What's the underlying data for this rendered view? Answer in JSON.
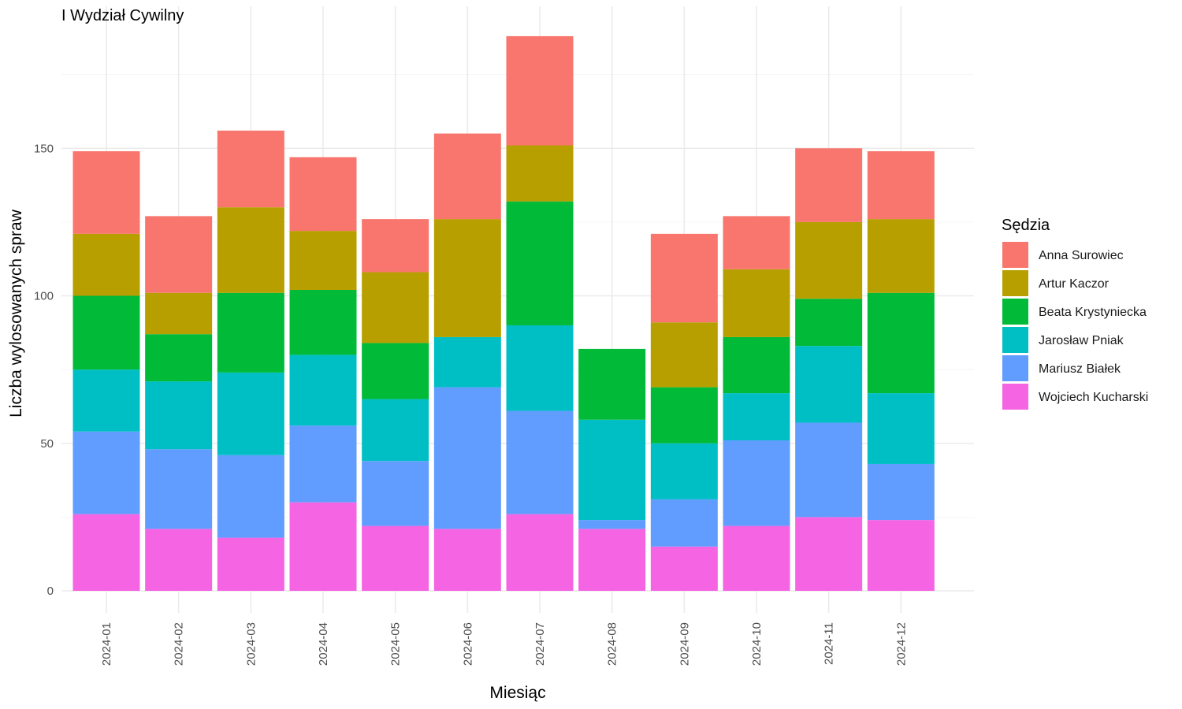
{
  "chart_data": {
    "type": "bar",
    "stacked": true,
    "title": "I Wydział Cywilny",
    "xlabel": "Miesiąc",
    "ylabel": "Liczba wylosowanych spraw",
    "ylim": [
      0,
      190
    ],
    "yticks": [
      0,
      50,
      100,
      150
    ],
    "grid": true,
    "legend_position": "right",
    "legend_title": "Sędzia",
    "categories": [
      "2024-01",
      "2024-02",
      "2024-03",
      "2024-04",
      "2024-05",
      "2024-06",
      "2024-07",
      "2024-08",
      "2024-09",
      "2024-10",
      "2024-11",
      "2024-12"
    ],
    "series": [
      {
        "name": "Anna Surowiec",
        "color": "#F8766D",
        "values": [
          28,
          26,
          26,
          25,
          18,
          29,
          37,
          0,
          30,
          18,
          25,
          23
        ]
      },
      {
        "name": "Artur Kaczor",
        "color": "#B79F00",
        "values": [
          21,
          14,
          29,
          20,
          24,
          40,
          19,
          0,
          22,
          23,
          26,
          25
        ]
      },
      {
        "name": "Beata Krystyniecka",
        "color": "#00BA38",
        "values": [
          25,
          16,
          27,
          22,
          19,
          0,
          42,
          24,
          19,
          19,
          16,
          34
        ]
      },
      {
        "name": "Jarosław Pniak",
        "color": "#00BFC4",
        "values": [
          21,
          23,
          28,
          24,
          21,
          17,
          29,
          34,
          19,
          16,
          26,
          24
        ]
      },
      {
        "name": "Mariusz Białek",
        "color": "#619CFF",
        "values": [
          28,
          27,
          28,
          26,
          22,
          48,
          35,
          3,
          16,
          29,
          32,
          19
        ]
      },
      {
        "name": "Wojciech Kucharski",
        "color": "#F564E3",
        "values": [
          26,
          21,
          18,
          30,
          22,
          21,
          26,
          21,
          15,
          22,
          25,
          24
        ]
      }
    ]
  }
}
